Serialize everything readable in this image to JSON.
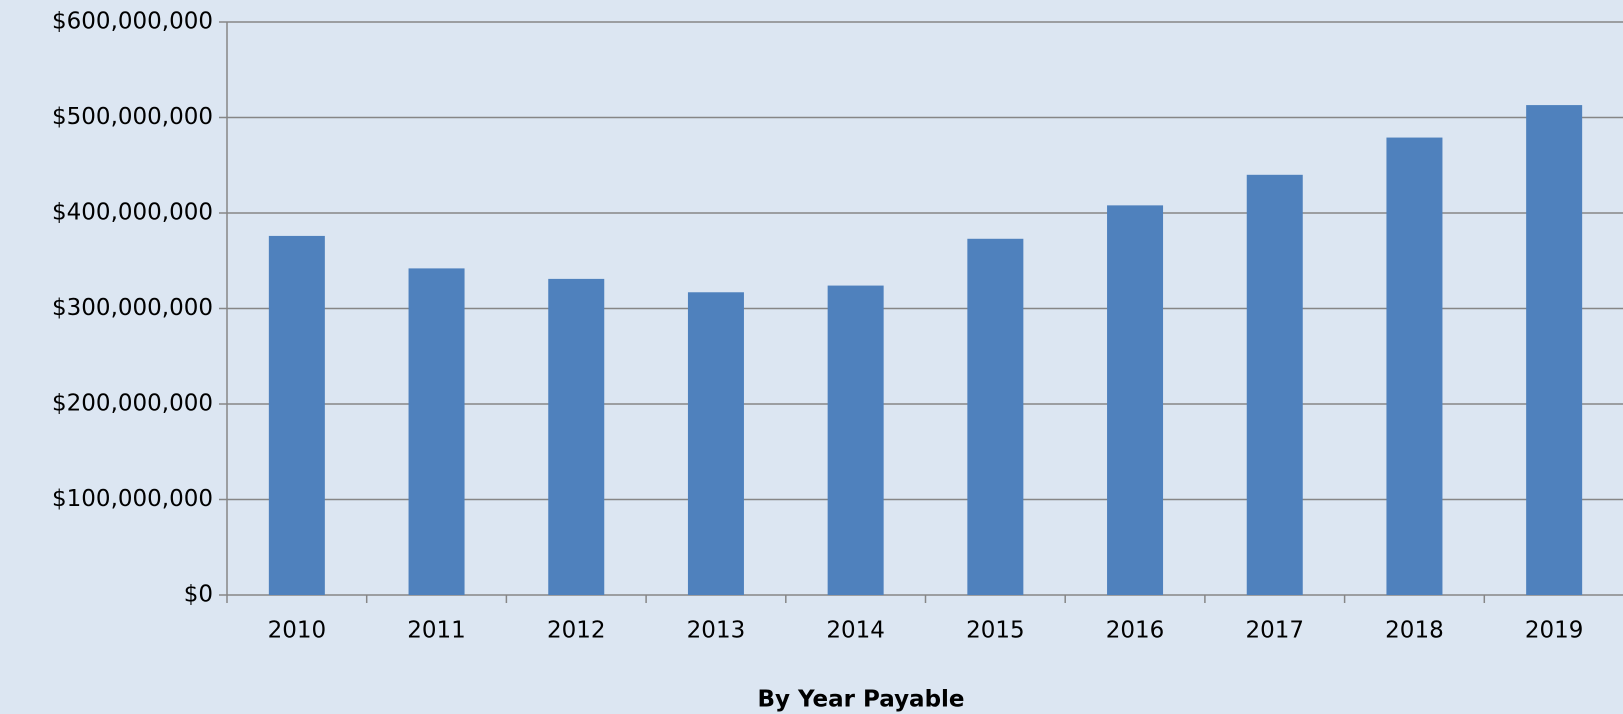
{
  "chart_data": {
    "type": "bar",
    "x_label": "By Year Payable",
    "categories": [
      "2010",
      "2011",
      "2012",
      "2013",
      "2014",
      "2015",
      "2016",
      "2017",
      "2018",
      "2019"
    ],
    "values": [
      376000000,
      342000000,
      331000000,
      317000000,
      324000000,
      373000000,
      408000000,
      440000000,
      479000000,
      513000000
    ],
    "color": "#4f81bd",
    "ylim": [
      0,
      600000000
    ],
    "yticks": [
      {
        "value": 0,
        "label": "$0"
      },
      {
        "value": 100000000,
        "label": "$100,000,000"
      },
      {
        "value": 200000000,
        "label": "$200,000,000"
      },
      {
        "value": 300000000,
        "label": "$300,000,000"
      },
      {
        "value": 400000000,
        "label": "$400,000,000"
      },
      {
        "value": 500000000,
        "label": "$500,000,000"
      },
      {
        "value": 600000000,
        "label": "$600,000,000"
      }
    ],
    "grid": true
  }
}
